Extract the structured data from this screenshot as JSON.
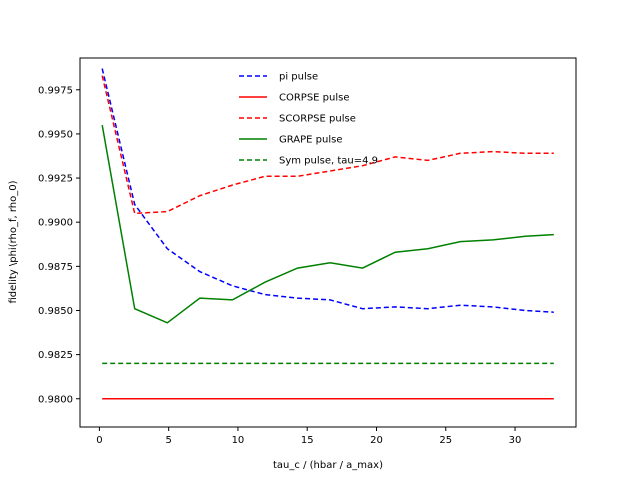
{
  "chart_data": {
    "type": "line",
    "title": "",
    "xlabel": "tau_c / (hbar / a_max)",
    "ylabel": "fidelity \\phi(rho_f, rho_0)",
    "xlim": [
      -1.4,
      34.4
    ],
    "ylim": [
      0.9784,
      0.9993
    ],
    "xticks": [
      0,
      5,
      10,
      15,
      20,
      25,
      30
    ],
    "yticks": [
      0.98,
      0.9825,
      0.985,
      0.9875,
      0.99,
      0.9925,
      0.995,
      0.9975
    ],
    "ytick_labels": [
      "0.9800",
      "0.9825",
      "0.9850",
      "0.9875",
      "0.9900",
      "0.9925",
      "0.9950",
      "0.9975"
    ],
    "grid": false,
    "legend_position": "top-center",
    "x": [
      0.2,
      2.55,
      4.9,
      7.25,
      9.6,
      11.95,
      14.3,
      16.65,
      19.0,
      21.35,
      23.7,
      26.05,
      28.4,
      30.75,
      32.8
    ],
    "series": [
      {
        "name": "pi pulse",
        "color": "#0000ff",
        "dash": "dashed",
        "values": [
          0.9987,
          0.991,
          0.9885,
          0.9872,
          0.9864,
          0.9859,
          0.9857,
          0.9856,
          0.9851,
          0.9852,
          0.9851,
          0.9853,
          0.9852,
          0.985,
          0.9849
        ]
      },
      {
        "name": "CORPSE pulse",
        "color": "#ff0000",
        "dash": "solid",
        "values": [
          0.98,
          0.98,
          0.98,
          0.98,
          0.98,
          0.98,
          0.98,
          0.98,
          0.98,
          0.98,
          0.98,
          0.98,
          0.98,
          0.98,
          0.98
        ]
      },
      {
        "name": "SCORPSE pulse",
        "color": "#ff0000",
        "dash": "dashed",
        "values": [
          0.9983,
          0.9905,
          0.9906,
          0.9915,
          0.9921,
          0.9926,
          0.9926,
          0.9929,
          0.9932,
          0.9937,
          0.9935,
          0.9939,
          0.994,
          0.9939,
          0.9939
        ]
      },
      {
        "name": "GRAPE pulse",
        "color": "#008000",
        "dash": "solid",
        "values": [
          0.9955,
          0.9851,
          0.9843,
          0.9857,
          0.9856,
          0.9866,
          0.9874,
          0.9877,
          0.9874,
          0.9883,
          0.9885,
          0.9889,
          0.989,
          0.9892,
          0.9893
        ]
      },
      {
        "name": "Sym pulse, tau=4.9",
        "color": "#008000",
        "dash": "dashed",
        "values": [
          0.982,
          0.982,
          0.982,
          0.982,
          0.982,
          0.982,
          0.982,
          0.982,
          0.982,
          0.982,
          0.982,
          0.982,
          0.982,
          0.982,
          0.982
        ]
      }
    ]
  }
}
